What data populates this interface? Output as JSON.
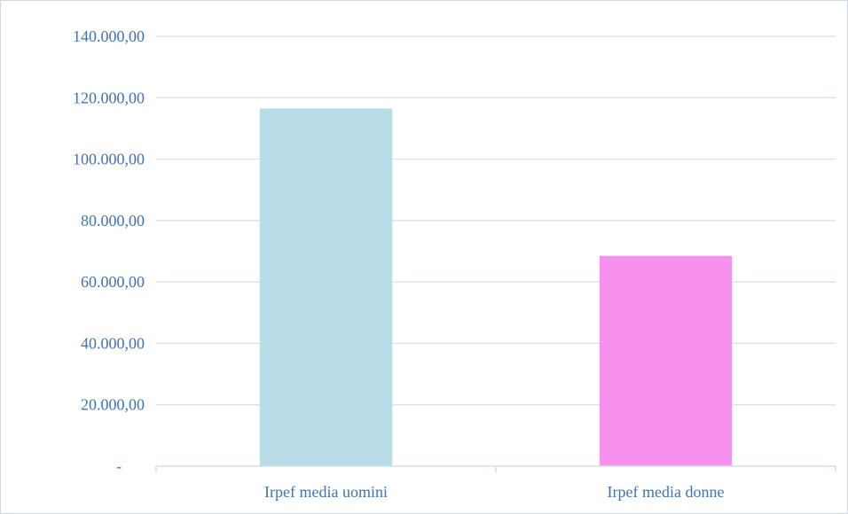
{
  "chart_data": {
    "type": "bar",
    "categories": [
      "Irpef media uomini",
      "Irpef media donne"
    ],
    "values": [
      116500,
      68500
    ],
    "colors": [
      "#b8dde6",
      "#f790ee"
    ],
    "ylim": [
      0,
      140000
    ],
    "yticks": [
      0,
      20000,
      40000,
      60000,
      80000,
      100000,
      120000,
      140000
    ],
    "ytick_labels": [
      "-",
      "20.000,00",
      "40.000,00",
      "60.000,00",
      "80.000,00",
      "100.000,00",
      "120.000,00",
      "140.000,00"
    ],
    "grid": true,
    "gridline_color": "#cfe0ef",
    "legend": "none"
  }
}
